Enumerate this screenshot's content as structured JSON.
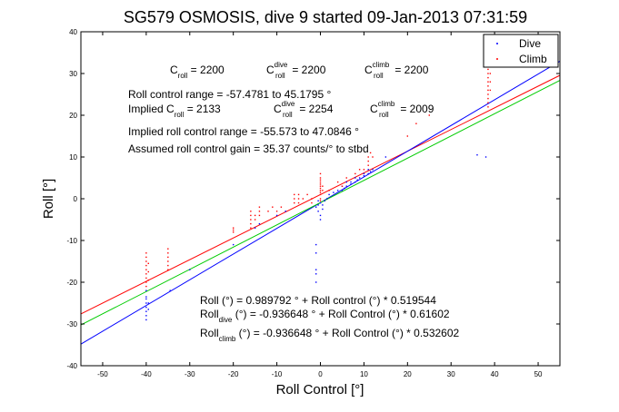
{
  "chart_data": {
    "type": "scatter",
    "title": "SG579 OSMOSIS, dive 9 started 09-Jan-2013 07:31:59",
    "xlabel": "Roll Control [°]",
    "ylabel": "Roll [°]",
    "xlim": [
      -55,
      55
    ],
    "ylim": [
      -40,
      40
    ],
    "xticks": [
      -50,
      -40,
      -30,
      -20,
      -10,
      0,
      10,
      20,
      30,
      40,
      50
    ],
    "yticks": [
      -40,
      -30,
      -20,
      -10,
      0,
      10,
      20,
      30,
      40
    ],
    "legend": {
      "placement": "top-right"
    },
    "colors": {
      "dive": "#0000ff",
      "climb": "#ff0000",
      "fit_all": "#ff0000",
      "fit_dive": "#0000ff",
      "fit_climb": "#00cc00"
    },
    "series": [
      {
        "name": "Dive",
        "points": [
          [
            -40,
            -22
          ],
          [
            -40,
            -24
          ],
          [
            -40,
            -25
          ],
          [
            -40,
            -26
          ],
          [
            -40,
            -27
          ],
          [
            -40,
            -28
          ],
          [
            -40,
            -29
          ],
          [
            -40,
            -23.5
          ],
          [
            -39.5,
            -26.5
          ],
          [
            -39.5,
            -25
          ],
          [
            -34.5,
            -22
          ],
          [
            -30,
            -17
          ],
          [
            -20,
            -11
          ],
          [
            -15,
            -7
          ],
          [
            -14,
            -6
          ],
          [
            -10,
            -4
          ],
          [
            -8,
            -3
          ],
          [
            -1,
            -2
          ],
          [
            -0.5,
            -3
          ],
          [
            0,
            -4
          ],
          [
            0,
            -5
          ],
          [
            0.5,
            -2.5
          ],
          [
            -0.5,
            -1.5
          ],
          [
            0,
            -1
          ],
          [
            -1,
            -11
          ],
          [
            -1,
            -13
          ],
          [
            -1,
            -17
          ],
          [
            -1,
            -18
          ],
          [
            -1,
            -20
          ],
          [
            -0.5,
            -0.5
          ],
          [
            0.5,
            -1.5
          ],
          [
            1,
            -0.5
          ],
          [
            1.5,
            0
          ],
          [
            2,
            1
          ],
          [
            3,
            1.5
          ],
          [
            4,
            2
          ],
          [
            5,
            2
          ],
          [
            5,
            3
          ],
          [
            5.5,
            2.5
          ],
          [
            6,
            3
          ],
          [
            6,
            4
          ],
          [
            7,
            4
          ],
          [
            7,
            3.5
          ],
          [
            8,
            4
          ],
          [
            8,
            5
          ],
          [
            8.5,
            4.5
          ],
          [
            9,
            5
          ],
          [
            10,
            6
          ],
          [
            10,
            5.5
          ],
          [
            11,
            6
          ],
          [
            11,
            7
          ],
          [
            11.5,
            6.5
          ],
          [
            12,
            7
          ],
          [
            15,
            10
          ],
          [
            38,
            10
          ],
          [
            36,
            10.5
          ]
        ]
      },
      {
        "name": "Climb",
        "points": [
          [
            -40,
            -14
          ],
          [
            -40,
            -15
          ],
          [
            -40,
            -16
          ],
          [
            -40,
            -17
          ],
          [
            -40,
            -18
          ],
          [
            -40,
            -19
          ],
          [
            -40,
            -20
          ],
          [
            -40,
            -21
          ],
          [
            -39.5,
            -15.5
          ],
          [
            -39.5,
            -17.5
          ],
          [
            -39.5,
            -19.5
          ],
          [
            -40,
            -13
          ],
          [
            -35,
            -12
          ],
          [
            -35,
            -13
          ],
          [
            -35,
            -14
          ],
          [
            -35,
            -15
          ],
          [
            -35,
            -16
          ],
          [
            -35,
            -17
          ],
          [
            -20,
            -7
          ],
          [
            -20,
            -7.5
          ],
          [
            -20,
            -8
          ],
          [
            -16,
            -3
          ],
          [
            -16,
            -4
          ],
          [
            -16,
            -5
          ],
          [
            -16,
            -6
          ],
          [
            -16,
            -7
          ],
          [
            -15,
            -4
          ],
          [
            -15,
            -5
          ],
          [
            -14,
            -2
          ],
          [
            -14,
            -3
          ],
          [
            -14,
            -4
          ],
          [
            -12,
            -3
          ],
          [
            -11,
            -2
          ],
          [
            -10,
            -3
          ],
          [
            -9,
            -2
          ],
          [
            -6,
            -1
          ],
          [
            -6,
            0
          ],
          [
            -6,
            1
          ],
          [
            -5,
            -1
          ],
          [
            -5,
            0
          ],
          [
            -5,
            1
          ],
          [
            -4,
            0
          ],
          [
            -3,
            1
          ],
          [
            -2,
            0
          ],
          [
            -2,
            -1
          ],
          [
            0,
            0
          ],
          [
            0,
            1
          ],
          [
            0,
            2
          ],
          [
            0,
            3
          ],
          [
            0,
            4
          ],
          [
            0,
            5
          ],
          [
            0,
            6
          ],
          [
            0.5,
            2
          ],
          [
            0.5,
            3
          ],
          [
            0,
            -0.5
          ],
          [
            0,
            1.5
          ],
          [
            0,
            2.5
          ],
          [
            0,
            3.5
          ],
          [
            0,
            4.5
          ],
          [
            2,
            2
          ],
          [
            4,
            4
          ],
          [
            5,
            3
          ],
          [
            6,
            5
          ],
          [
            8,
            6
          ],
          [
            9,
            7
          ],
          [
            10,
            7
          ],
          [
            11,
            8
          ],
          [
            11,
            9
          ],
          [
            11,
            10
          ],
          [
            11.5,
            11
          ],
          [
            12,
            10
          ],
          [
            20,
            15
          ],
          [
            22,
            18
          ],
          [
            25,
            20
          ],
          [
            38.5,
            22
          ],
          [
            38.5,
            23
          ],
          [
            38.5,
            24
          ],
          [
            38.5,
            25
          ],
          [
            38.5,
            26
          ],
          [
            38.5,
            27
          ],
          [
            38.5,
            28
          ],
          [
            38.5,
            29
          ],
          [
            38.5,
            30
          ],
          [
            38.5,
            31
          ],
          [
            38.5,
            32
          ],
          [
            38.5,
            33
          ],
          [
            39,
            26
          ],
          [
            39,
            28
          ],
          [
            39,
            30
          ]
        ]
      }
    ],
    "fit_lines": [
      {
        "id": "all",
        "intercept": 0.989792,
        "slope": 0.519544
      },
      {
        "id": "dive",
        "intercept": -0.936648,
        "slope": 0.61602
      },
      {
        "id": "climb",
        "intercept": -0.936648,
        "slope": 0.532602
      }
    ]
  },
  "annotations": {
    "c_roll": {
      "p1": "C",
      "s1": "roll",
      "v1": " = 2200",
      "p2": "C",
      "s2": "roll",
      "sup2": "dive",
      "v2": " = 2200",
      "p3": "C",
      "s3": "roll",
      "sup3": "climb",
      "v3": " = 2200"
    },
    "range_line": "Roll control range = -57.4781 to 45.1795 °",
    "implied": {
      "p1": "Implied C",
      "s1": "roll",
      "v1": " = 2133",
      "p2": "C",
      "s2": "roll",
      "sup2": "dive",
      "v2": " = 2254",
      "p3": "C",
      "s3": "roll",
      "sup3": "climb",
      "v3": " = 2009"
    },
    "implied_range_line": "Implied roll control range = -55.573 to 47.0846 °",
    "gain_line": "Assumed roll control gain = 35.37 counts/° to stbd",
    "fit_all_line": "Roll (°) = 0.989792 ° + Roll control (°) * 0.519544",
    "fit_dive": {
      "p": "Roll",
      "s": "dive",
      "rest": " (°) = -0.936648 ° + Roll Control (°) * 0.61602"
    },
    "fit_climb": {
      "p": "Roll",
      "s": "climb",
      "rest": " (°) = -0.936648 ° + Roll Control (°) * 0.532602"
    }
  }
}
